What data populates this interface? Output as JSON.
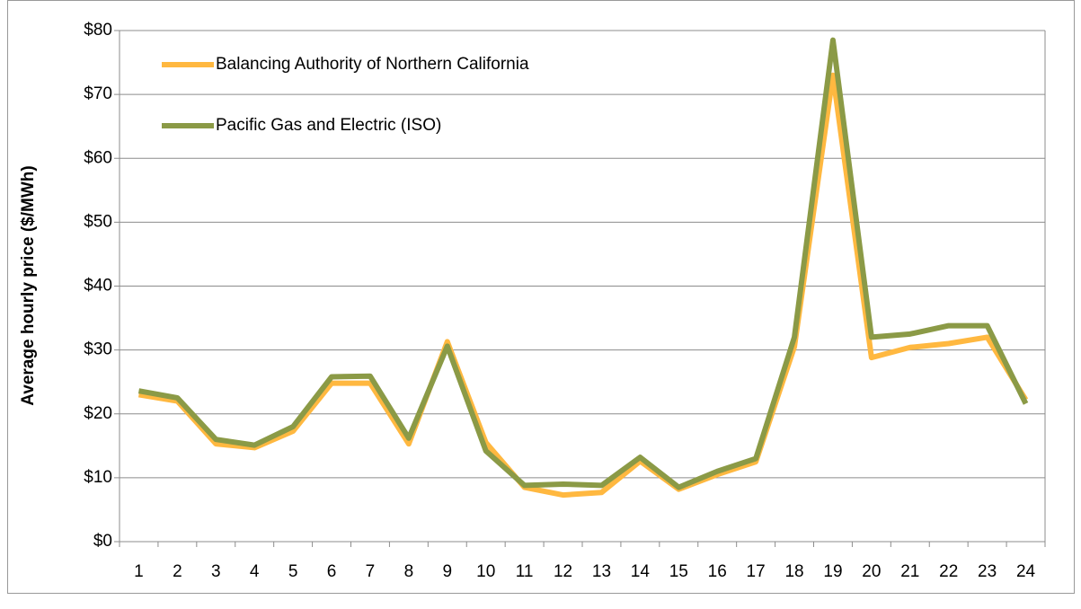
{
  "chart_data": {
    "type": "line",
    "y_label": "Average hourly price ($/MWh)",
    "categories": [
      "1",
      "2",
      "3",
      "4",
      "5",
      "6",
      "7",
      "8",
      "9",
      "10",
      "11",
      "12",
      "13",
      "14",
      "15",
      "16",
      "17",
      "18",
      "19",
      "20",
      "21",
      "22",
      "23",
      "24"
    ],
    "series": [
      {
        "name": "Balancing Authority of Northern California",
        "color": "#ffb840",
        "values": [
          23,
          22,
          15.3,
          14.7,
          17.3,
          24.8,
          24.8,
          15.3,
          31.3,
          15.5,
          8.5,
          7.3,
          7.7,
          12.6,
          8.2,
          10.5,
          12.5,
          30.5,
          73,
          28.8,
          30.4,
          31,
          32,
          22.2
        ]
      },
      {
        "name": "Pacific Gas and Electric (ISO)",
        "color": "#8b9a46",
        "values": [
          23.6,
          22.5,
          16,
          15.1,
          18,
          25.8,
          25.9,
          16.2,
          30.6,
          14.2,
          8.8,
          9,
          8.8,
          13.2,
          8.5,
          11,
          13,
          32,
          78.5,
          32,
          32.5,
          33.8,
          33.8,
          21.6
        ]
      }
    ],
    "ylim": [
      0,
      80
    ],
    "yticks": [
      {
        "value": 0,
        "label": "$0"
      },
      {
        "value": 10,
        "label": "$10"
      },
      {
        "value": 20,
        "label": "$20"
      },
      {
        "value": 30,
        "label": "$30"
      },
      {
        "value": 40,
        "label": "$40"
      },
      {
        "value": 50,
        "label": "$50"
      },
      {
        "value": 60,
        "label": "$60"
      },
      {
        "value": 70,
        "label": "$70"
      },
      {
        "value": 80,
        "label": "$80"
      }
    ],
    "grid": true,
    "legend": "top-left"
  }
}
